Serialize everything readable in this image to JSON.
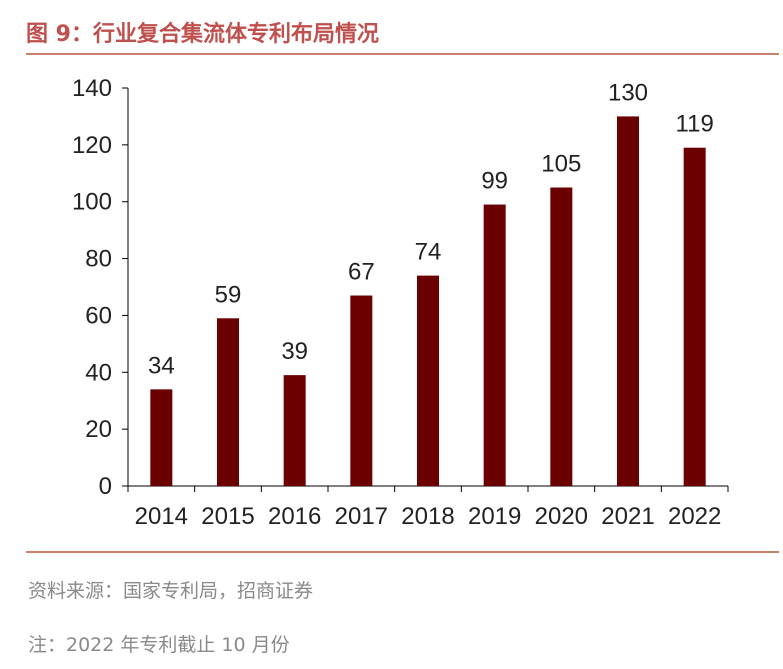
{
  "header": {
    "title": "图 9：行业复合集流体专利布局情况"
  },
  "footer": {
    "source": "资料来源：国家专利局，招商证券",
    "note": "注：2022 年专利截止 10 月份"
  },
  "colors": {
    "bar": "#6b0000",
    "title": "#c0504d",
    "rule": "#c8826a"
  },
  "chart_data": {
    "type": "bar",
    "title": "行业复合集流体专利布局情况",
    "xlabel": "",
    "ylabel": "",
    "categories": [
      "2014",
      "2015",
      "2016",
      "2017",
      "2018",
      "2019",
      "2020",
      "2021",
      "2022"
    ],
    "values": [
      34,
      59,
      39,
      67,
      74,
      99,
      105,
      130,
      119
    ],
    "data_labels": [
      "34",
      "59",
      "39",
      "67",
      "74",
      "99",
      "105",
      "130",
      "119"
    ],
    "ylim": [
      0,
      140
    ],
    "yticks": [
      0,
      20,
      40,
      60,
      80,
      100,
      120,
      140
    ],
    "grid": false,
    "legend": "none"
  }
}
